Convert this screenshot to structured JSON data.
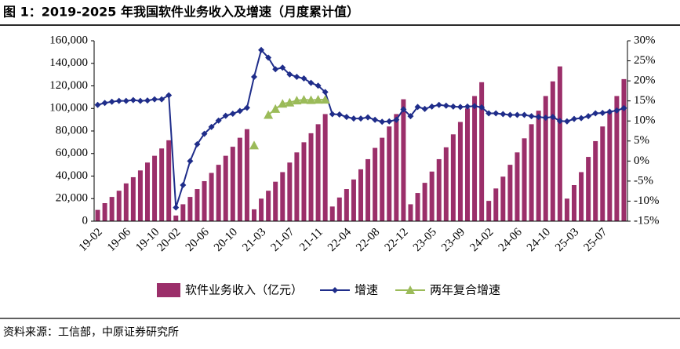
{
  "chart_data": {
    "type": "bar",
    "title": "图 1：2019-2025 年我国软件业务收入及增速（月度累计值）",
    "source": "资料来源：工信部，中原证券研究所",
    "categories": [
      "19-02",
      null,
      null,
      null,
      "19-06",
      null,
      null,
      null,
      "19-10",
      null,
      null,
      "20-02",
      null,
      null,
      null,
      "20-06",
      null,
      null,
      null,
      "20-10",
      null,
      null,
      null,
      "21-03",
      null,
      null,
      null,
      "21-07",
      null,
      null,
      null,
      "21-11",
      null,
      null,
      null,
      "22-04",
      null,
      null,
      null,
      "22-08",
      null,
      null,
      null,
      "22-12",
      null,
      null,
      null,
      "23-05",
      null,
      null,
      null,
      "23-09",
      null,
      null,
      null,
      "24-02",
      null,
      null,
      null,
      "24-06",
      null,
      null,
      null,
      "24-10",
      null,
      null,
      null,
      "25-03",
      null,
      null,
      null,
      "25-07",
      null,
      null,
      null
    ],
    "series": [
      {
        "name": "软件业务收入（亿元）",
        "type": "bar",
        "color": "#9b2f6a",
        "values": [
          10000,
          16000,
          21500,
          27000,
          33500,
          39000,
          45000,
          52000,
          58000,
          64500,
          71768,
          5000,
          15000,
          21500,
          28500,
          35500,
          42800,
          50000,
          58000,
          66000,
          74000,
          81616,
          10500,
          20000,
          27000,
          35000,
          43500,
          52000,
          61000,
          70000,
          78000,
          86000,
          94994,
          13000,
          21000,
          28500,
          37000,
          46000,
          55000,
          65000,
          74000,
          84000,
          95000,
          108126,
          15000,
          25000,
          34000,
          44000,
          55000,
          65500,
          77000,
          88000,
          100000,
          111000,
          123258,
          18000,
          29000,
          39500,
          50000,
          61000,
          73500,
          86000,
          98000,
          111000,
          124000,
          137276,
          20000,
          32000,
          43500,
          57000,
          71000,
          84000,
          98000,
          111000,
          126000
        ]
      },
      {
        "name": "增速",
        "type": "line",
        "axis": "y2",
        "marker": "diamond",
        "color": "#1f2d8a",
        "values": [
          14.0,
          14.5,
          14.8,
          15.0,
          15.0,
          15.2,
          15.0,
          15.1,
          15.4,
          15.4,
          16.4,
          -11.6,
          -6.0,
          0.0,
          4.2,
          6.8,
          8.5,
          10.1,
          11.3,
          11.8,
          12.5,
          13.3,
          21.0,
          27.7,
          25.8,
          22.9,
          23.3,
          21.6,
          21.0,
          20.6,
          19.5,
          18.8,
          17.2,
          11.7,
          11.6,
          11.0,
          10.6,
          10.6,
          10.9,
          10.3,
          9.8,
          9.9,
          10.3,
          12.9,
          11.2,
          13.5,
          13.0,
          13.6,
          14.0,
          13.8,
          13.6,
          13.5,
          13.6,
          13.7,
          13.4,
          11.9,
          11.9,
          11.7,
          11.5,
          11.5,
          11.5,
          11.2,
          11.0,
          10.8,
          11.0,
          10.0,
          9.9,
          10.5,
          10.7,
          11.2,
          11.9,
          12.0,
          12.3,
          12.6,
          13.2
        ]
      },
      {
        "name": "两年复合增速",
        "type": "line",
        "axis": "y2",
        "marker": "triangle",
        "color": "#9bbb59",
        "values": [
          null,
          null,
          null,
          null,
          null,
          null,
          null,
          null,
          null,
          null,
          null,
          null,
          null,
          null,
          null,
          null,
          null,
          null,
          null,
          null,
          null,
          null,
          3.9,
          null,
          11.5,
          13.0,
          14.3,
          14.6,
          15.1,
          15.3,
          15.2,
          15.3,
          15.3,
          null,
          null,
          null,
          null,
          null,
          null,
          null,
          null,
          null,
          null,
          null,
          null,
          null,
          null,
          null,
          null,
          null,
          null,
          null,
          null,
          null,
          null,
          null,
          null,
          null,
          null,
          null,
          null,
          null,
          null,
          null,
          null,
          null,
          null,
          null,
          null,
          null,
          null,
          null,
          null,
          null,
          null
        ]
      }
    ],
    "ylim": [
      0,
      160000
    ],
    "yticks": [
      0,
      {
        "value": 20000,
        "label": "20,000"
      },
      {
        "value": 40000,
        "label": "40,000"
      },
      {
        "value": 60000,
        "label": "60,000"
      },
      {
        "value": 80000,
        "label": "80,000"
      },
      {
        "value": 100000,
        "label": "100,000"
      },
      {
        "value": 120000,
        "label": "120,000"
      },
      {
        "value": 140000,
        "label": "140,000"
      },
      {
        "value": 160000,
        "label": "160,000"
      }
    ],
    "y2lim": [
      -15,
      30
    ],
    "y2ticks": [
      {
        "value": 30,
        "label": "30%"
      },
      {
        "value": 25,
        "label": "25%"
      },
      {
        "value": 20,
        "label": "20%"
      },
      {
        "value": 15,
        "label": "15%"
      },
      {
        "value": 10,
        "label": "10%"
      },
      {
        "value": 5,
        "label": "5%"
      },
      {
        "value": 0,
        "label": "0%"
      },
      {
        "value": -5,
        "label": "-5%"
      },
      {
        "value": -10,
        "label": "-10%"
      },
      {
        "value": -15,
        "label": "-15%"
      }
    ],
    "legend": "bottom"
  }
}
